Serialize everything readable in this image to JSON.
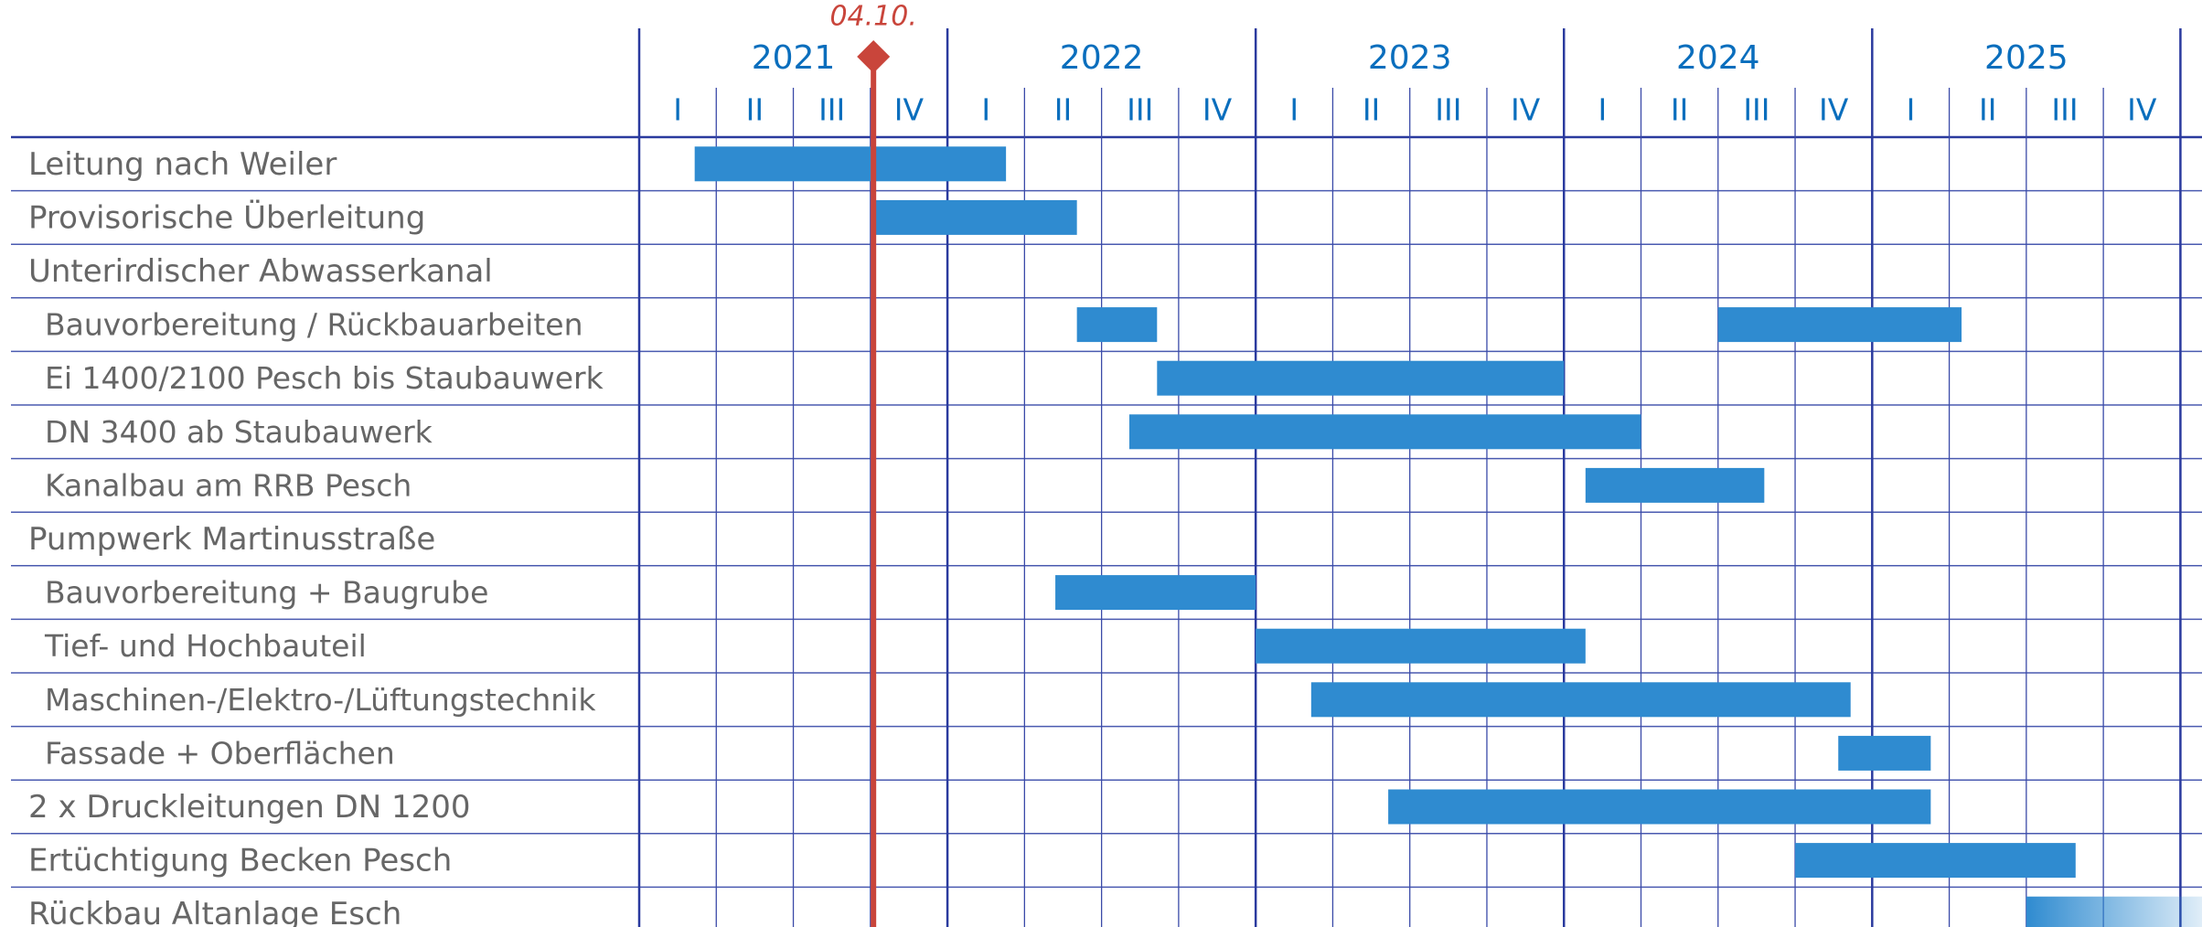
{
  "chart_data": {
    "type": "gantt",
    "xlim": [
      2021,
      2026.07
    ],
    "xticks": [
      2021,
      2022,
      2023,
      2024,
      2025
    ],
    "quarters": [
      "I",
      "II",
      "III",
      "IV"
    ],
    "color": "#2f8bd0",
    "grid_color": "#2a3a9e",
    "marker": {
      "label": "04.10.",
      "value": 2021.76,
      "color": "#c9453b"
    },
    "tasks": [
      {
        "name": "Leitung nach Weiler",
        "indent": false,
        "bars": [
          {
            "start": 2021.18,
            "end": 2022.19
          }
        ]
      },
      {
        "name": "Provisorische Überleitung",
        "indent": false,
        "bars": [
          {
            "start": 2021.76,
            "end": 2022.42
          }
        ]
      },
      {
        "name": "Unterirdischer Abwasserkanal",
        "indent": false,
        "bars": []
      },
      {
        "name": "Bauvorbereitung / Rückbauarbeiten",
        "indent": true,
        "bars": [
          {
            "start": 2022.42,
            "end": 2022.68
          },
          {
            "start": 2024.5,
            "end": 2025.29
          }
        ]
      },
      {
        "name": "Ei 1400/2100 Pesch bis Staubauwerk",
        "indent": true,
        "bars": [
          {
            "start": 2022.68,
            "end": 2024.0
          }
        ]
      },
      {
        "name": "DN 3400 ab Staubauwerk",
        "indent": true,
        "bars": [
          {
            "start": 2022.59,
            "end": 2024.25
          }
        ]
      },
      {
        "name": "Kanalbau am RRB Pesch",
        "indent": true,
        "bars": [
          {
            "start": 2024.07,
            "end": 2024.65
          }
        ]
      },
      {
        "name": "Pumpwerk Martinusstraße",
        "indent": false,
        "bars": []
      },
      {
        "name": "Bauvorbereitung + Baugrube",
        "indent": true,
        "bars": [
          {
            "start": 2022.35,
            "end": 2023.0
          }
        ]
      },
      {
        "name": "Tief- und Hochbauteil",
        "indent": true,
        "bars": [
          {
            "start": 2023.0,
            "end": 2024.07
          }
        ]
      },
      {
        "name": "Maschinen-/Elektro-/Lüftungstechnik",
        "indent": true,
        "bars": [
          {
            "start": 2023.18,
            "end": 2024.93
          }
        ]
      },
      {
        "name": "Fassade + Oberflächen",
        "indent": true,
        "bars": [
          {
            "start": 2024.89,
            "end": 2025.19
          }
        ]
      },
      {
        "name": "2 x Druckleitungen DN 1200",
        "indent": false,
        "bars": [
          {
            "start": 2023.43,
            "end": 2025.19
          }
        ]
      },
      {
        "name": "Ertüchtigung Becken Pesch",
        "indent": false,
        "bars": [
          {
            "start": 2024.75,
            "end": 2025.66
          }
        ]
      },
      {
        "name": "Rückbau Altanlage Esch",
        "indent": false,
        "bars": [
          {
            "start": 2025.5,
            "end": 2026.07,
            "fade": true
          }
        ]
      }
    ]
  }
}
